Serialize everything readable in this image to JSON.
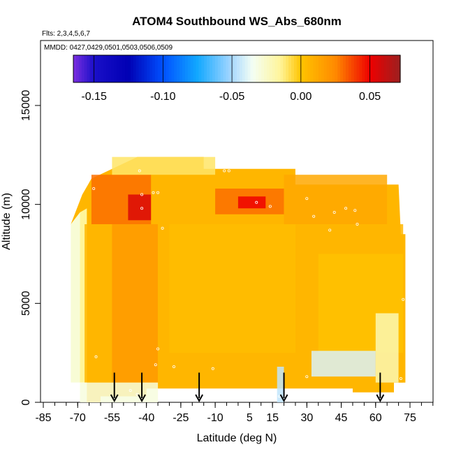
{
  "chart_data": {
    "type": "heatmap",
    "title": "ATOM4 Southbound WS_Abs_680nm",
    "flights_label": "Flts: 2,3,4,5,6,7",
    "dates_label": "MMDD: 0427,0429,0501,0503,0506,0509",
    "xlabel": "Latitude (deg N)",
    "ylabel": "Altitude (m)",
    "xlim": [
      -90,
      90
    ],
    "ylim": [
      0,
      18000
    ],
    "x_ticks": [
      -85,
      -70,
      -55,
      -40,
      -25,
      -10,
      5,
      15,
      30,
      45,
      60,
      75
    ],
    "x_tick_labels": [
      "-85",
      "-70",
      "-55",
      "-40",
      "-25",
      "-10",
      "5",
      "15",
      "30",
      "45",
      "60",
      "75"
    ],
    "y_ticks": [
      0,
      5000,
      10000,
      15000
    ],
    "y_tick_labels": [
      "0",
      "5000",
      "10000",
      "15000"
    ],
    "colorbar": {
      "range": [
        -0.165,
        0.072
      ],
      "ticks": [
        -0.15,
        -0.1,
        -0.05,
        0.0,
        0.05
      ],
      "tick_labels": [
        "-0.15",
        "-0.10",
        "-0.05",
        "0.00",
        "0.05"
      ],
      "stops": [
        {
          "v": -0.165,
          "color": "#7b2ee0"
        },
        {
          "v": -0.15,
          "color": "#1a0fc8"
        },
        {
          "v": -0.125,
          "color": "#0000b4"
        },
        {
          "v": -0.1,
          "color": "#0050ff"
        },
        {
          "v": -0.075,
          "color": "#12a8ff"
        },
        {
          "v": -0.05,
          "color": "#a8d8ff"
        },
        {
          "v": -0.035,
          "color": "#f4fff4"
        },
        {
          "v": -0.015,
          "color": "#fff59a"
        },
        {
          "v": 0.0,
          "color": "#ffc400"
        },
        {
          "v": 0.025,
          "color": "#ff8a00"
        },
        {
          "v": 0.05,
          "color": "#ee0000"
        },
        {
          "v": 0.072,
          "color": "#9c2020"
        }
      ]
    },
    "regions": [
      {
        "name": "main-field",
        "value": 0.006,
        "x": [
          -73,
          -66,
          70,
          73
        ],
        "y_bottom": [
          1000,
          9200,
          1000,
          7500
        ],
        "note": "bulk"
      },
      {
        "lat_min": -67,
        "lat_max": 72,
        "alt_min": 1000,
        "alt_max": 9000,
        "value": 0.006
      },
      {
        "lat_min": -55,
        "lat_max": -35,
        "alt_min": 1000,
        "alt_max": 9000,
        "value": 0.018
      },
      {
        "lat_min": -30,
        "lat_max": 25,
        "alt_min": 2500,
        "alt_max": 9000,
        "value": 0.003
      },
      {
        "lat_min": 35,
        "lat_max": 72,
        "alt_min": 2500,
        "alt_max": 7500,
        "value": 0.001
      },
      {
        "lat_min": -64,
        "lat_max": -38,
        "alt_min": 9000,
        "alt_max": 11500,
        "value": 0.03
      },
      {
        "lat_min": -48,
        "lat_max": -38,
        "alt_min": 9200,
        "alt_max": 10500,
        "value": 0.055
      },
      {
        "lat_min": -10,
        "lat_max": 20,
        "alt_min": 9500,
        "alt_max": 10800,
        "value": 0.03
      },
      {
        "lat_min": 0,
        "lat_max": 12,
        "alt_min": 9800,
        "alt_max": 10400,
        "value": 0.05
      },
      {
        "lat_min": 20,
        "lat_max": 65,
        "alt_min": 9000,
        "alt_max": 11500,
        "value": 0.012
      },
      {
        "lat_min": -55,
        "lat_max": -10,
        "alt_min": 11500,
        "alt_max": 12400,
        "value": -0.01
      },
      {
        "lat_min": 60,
        "lat_max": 70,
        "alt_min": 1000,
        "alt_max": 4500,
        "value": -0.02
      },
      {
        "lat_min": 32,
        "lat_max": 60,
        "alt_min": 1300,
        "alt_max": 2600,
        "value": -0.04
      },
      {
        "lat_min": -69,
        "lat_max": -35,
        "alt_min": 0,
        "alt_max": 1000,
        "value": -0.03
      },
      {
        "lat_min": 17,
        "lat_max": 20,
        "alt_min": 0,
        "alt_max": 1800,
        "value": -0.045
      }
    ],
    "arrows_lat": [
      -54,
      -42,
      -17,
      20,
      62
    ],
    "sample_points": [
      {
        "x": -43,
        "y": 11700
      },
      {
        "x": -63,
        "y": 10800
      },
      {
        "x": -37,
        "y": 10600
      },
      {
        "x": -35,
        "y": 10600
      },
      {
        "x": -42,
        "y": 9800
      },
      {
        "x": -42,
        "y": 10500
      },
      {
        "x": -33,
        "y": 8800
      },
      {
        "x": -6,
        "y": 11700
      },
      {
        "x": -4,
        "y": 11700
      },
      {
        "x": 8,
        "y": 10100
      },
      {
        "x": 14,
        "y": 9900
      },
      {
        "x": 30,
        "y": 10300
      },
      {
        "x": 33,
        "y": 9400
      },
      {
        "x": 47,
        "y": 9800
      },
      {
        "x": 51,
        "y": 9700
      },
      {
        "x": 42,
        "y": 9600
      },
      {
        "x": 40,
        "y": 8700
      },
      {
        "x": 52,
        "y": 9000
      },
      {
        "x": 72,
        "y": 5200
      },
      {
        "x": -35,
        "y": 2700
      },
      {
        "x": -62,
        "y": 2300
      },
      {
        "x": -36,
        "y": 1900
      },
      {
        "x": -28,
        "y": 1800
      },
      {
        "x": -11,
        "y": 1700
      },
      {
        "x": 30,
        "y": 1300
      },
      {
        "x": 71,
        "y": 1200
      },
      {
        "x": -47,
        "y": 600
      },
      {
        "x": -44,
        "y": 400
      },
      {
        "x": 11,
        "y": 500
      },
      {
        "x": 18,
        "y": 300
      }
    ]
  }
}
